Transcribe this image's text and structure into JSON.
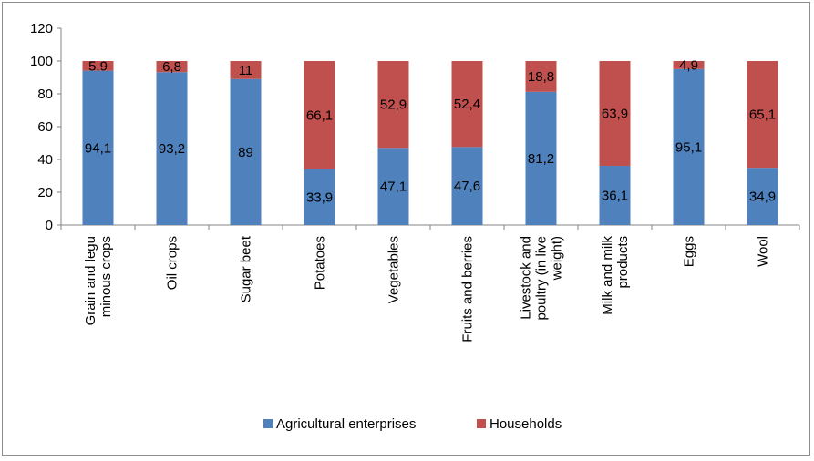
{
  "chart_data": {
    "type": "bar",
    "stacked": true,
    "categories": [
      [
        "Grain and legu",
        "minous crops"
      ],
      [
        "Oil crops"
      ],
      [
        "Sugar beet"
      ],
      [
        "Potatoes"
      ],
      [
        "Vegetables"
      ],
      [
        "Fruits and berries"
      ],
      [
        "Livestock and",
        "poultry (in live",
        "weight)"
      ],
      [
        "Milk and milk",
        "products"
      ],
      [
        "Eggs"
      ],
      [
        "Wool"
      ]
    ],
    "series": [
      {
        "name": "Agricultural enterprises",
        "color": "#4f81bd",
        "values": [
          94.1,
          93.2,
          89,
          33.9,
          47.1,
          47.6,
          81.2,
          36.1,
          95.1,
          34.9
        ],
        "labels": [
          "94,1",
          "93,2",
          "89",
          "33,9",
          "47,1",
          "47,6",
          "81,2",
          "36,1",
          "95,1",
          "34,9"
        ]
      },
      {
        "name": "Households",
        "color": "#c0504d",
        "values": [
          5.9,
          6.8,
          11,
          66.1,
          52.9,
          52.4,
          18.8,
          63.9,
          4.9,
          65.1
        ],
        "labels": [
          "5,9",
          "6,8",
          "11",
          "66,1",
          "52,9",
          "52,4",
          "18,8",
          "63,9",
          "4,9",
          "65,1"
        ]
      }
    ],
    "yticks": [
      "0",
      "20",
      "40",
      "60",
      "80",
      "100",
      "120"
    ],
    "ylim": [
      0,
      120
    ],
    "grid": false,
    "legend": "bottom",
    "title": "",
    "xlabel": "",
    "ylabel": ""
  }
}
